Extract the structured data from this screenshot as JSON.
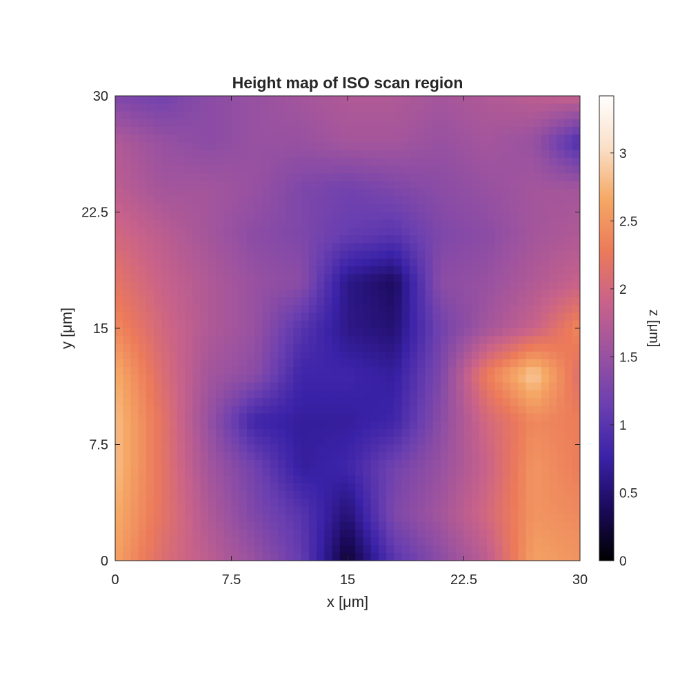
{
  "chart_data": {
    "type": "heatmap",
    "title": "Height map of ISO scan region",
    "xlabel": "x [μm]",
    "ylabel": "y [μm]",
    "colorbar_label": "z [μm]",
    "xlim": [
      0,
      30
    ],
    "ylim": [
      0,
      30
    ],
    "x_ticks": [
      0,
      7.5,
      15,
      22.5,
      30
    ],
    "x_tick_labels": [
      "0",
      "7.5",
      "15",
      "22.5",
      "30"
    ],
    "y_ticks": [
      0,
      7.5,
      15,
      22.5,
      30
    ],
    "y_tick_labels": [
      "0",
      "7.5",
      "15",
      "22.5",
      "30"
    ],
    "clim": [
      0,
      3.42
    ],
    "colorbar_ticks": [
      0,
      0.5,
      1,
      1.5,
      2,
      2.5,
      3
    ],
    "colorbar_tick_labels": [
      "0",
      "0.5",
      "1",
      "1.5",
      "2",
      "2.5",
      "3"
    ],
    "colormap": [
      "#000000",
      "#1a0a5a",
      "#3a22a8",
      "#6a3fb0",
      "#9a52a0",
      "#c8628a",
      "#ec7a5a",
      "#f5a865",
      "#fae0c8",
      "#ffffff"
    ],
    "grid": false,
    "z_grid_x": [
      0,
      3,
      6,
      9,
      12,
      15,
      18,
      21,
      24,
      27,
      30
    ],
    "z_grid_y": [
      30,
      27,
      24,
      21,
      18,
      15,
      12,
      9,
      6,
      3,
      0
    ],
    "z_grid": [
      [
        1.3,
        1.2,
        1.4,
        1.5,
        1.6,
        1.7,
        1.7,
        1.6,
        1.7,
        1.8,
        1.9
      ],
      [
        1.7,
        1.5,
        1.4,
        1.5,
        1.5,
        1.6,
        1.6,
        1.5,
        1.6,
        1.5,
        0.9
      ],
      [
        1.8,
        1.6,
        1.6,
        1.5,
        1.3,
        1.2,
        1.3,
        1.4,
        1.5,
        1.6,
        1.6
      ],
      [
        2.0,
        1.8,
        1.6,
        1.4,
        1.3,
        1.1,
        1.0,
        1.3,
        1.4,
        1.6,
        1.7
      ],
      [
        2.2,
        1.9,
        1.7,
        1.5,
        1.4,
        0.6,
        0.4,
        1.4,
        1.5,
        1.7,
        1.9
      ],
      [
        2.4,
        2.0,
        1.7,
        1.5,
        1.0,
        0.6,
        0.5,
        1.2,
        1.6,
        1.9,
        2.4
      ],
      [
        2.7,
        2.1,
        1.6,
        1.4,
        0.8,
        0.8,
        0.7,
        1.3,
        2.3,
        2.9,
        2.1
      ],
      [
        2.8,
        2.2,
        1.5,
        0.8,
        0.7,
        0.7,
        0.8,
        1.4,
        2.0,
        2.4,
        2.3
      ],
      [
        2.8,
        2.2,
        1.6,
        1.2,
        0.7,
        0.8,
        1.2,
        1.5,
        1.9,
        2.5,
        2.3
      ],
      [
        2.7,
        2.2,
        1.7,
        1.3,
        1.0,
        0.5,
        1.3,
        1.6,
        2.0,
        2.5,
        2.4
      ],
      [
        2.6,
        2.1,
        1.8,
        1.5,
        1.1,
        0.2,
        1.0,
        1.4,
        1.8,
        2.6,
        2.5
      ]
    ]
  }
}
